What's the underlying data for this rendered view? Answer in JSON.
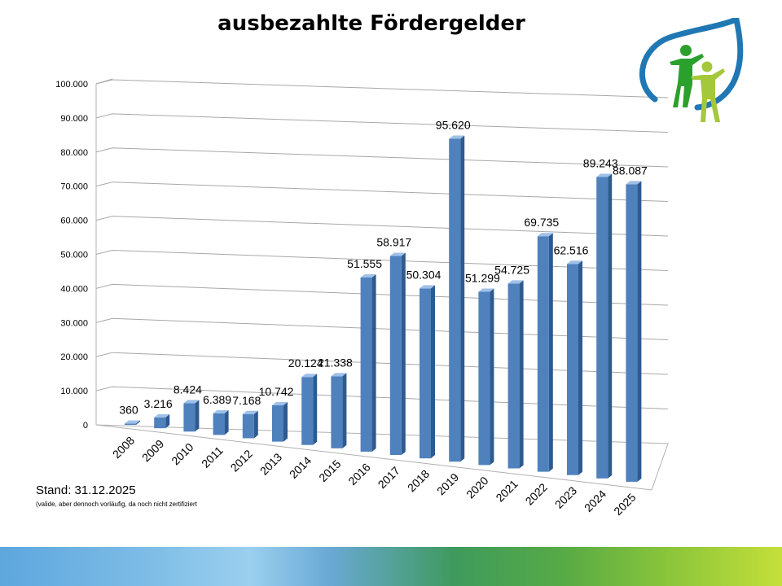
{
  "chart_data": {
    "type": "bar",
    "title": "ausbezahlte Fördergelder",
    "categories": [
      "2008",
      "2009",
      "2010",
      "2011",
      "2012",
      "2013",
      "2014",
      "2015",
      "2016",
      "2017",
      "2018",
      "2019",
      "2020",
      "2021",
      "2022",
      "2023",
      "2024",
      "2025"
    ],
    "series": [
      {
        "values": [
          360,
          3216,
          8424,
          6389,
          7168,
          10742,
          20124,
          21338,
          51555,
          58917,
          50304,
          95620,
          51299,
          54725,
          69735,
          62516,
          89243,
          88087
        ],
        "labels": [
          "360",
          "3.216",
          "8.424",
          "6.389",
          "7.168",
          "10.742",
          "20.124",
          "21.338",
          "51.555",
          "58.917",
          "50.304",
          "95.620",
          "51.299",
          "54.725",
          "69.735",
          "62.516",
          "89.243",
          "88.087"
        ]
      }
    ],
    "yticks": [
      "0",
      "10.000",
      "20.000",
      "30.000",
      "40.000",
      "50.000",
      "60.000",
      "70.000",
      "80.000",
      "90.000",
      "100.000"
    ],
    "ylim": [
      0,
      100000
    ],
    "grid": true,
    "legend": "none",
    "bar_color": "#4f81bd",
    "bar_side_color": "#2d5a8f",
    "bar_top_color": "#9fc0e8"
  },
  "footnote": {
    "stand": "Stand: 31.12.2025",
    "note": "(valide, aber dennoch vorläufig, da noch nicht zertifiziert"
  },
  "logo": {
    "icon": "leaf-people-logo-icon",
    "colors": [
      "#1f78b4",
      "#2ca02c",
      "#a4c83a"
    ]
  }
}
